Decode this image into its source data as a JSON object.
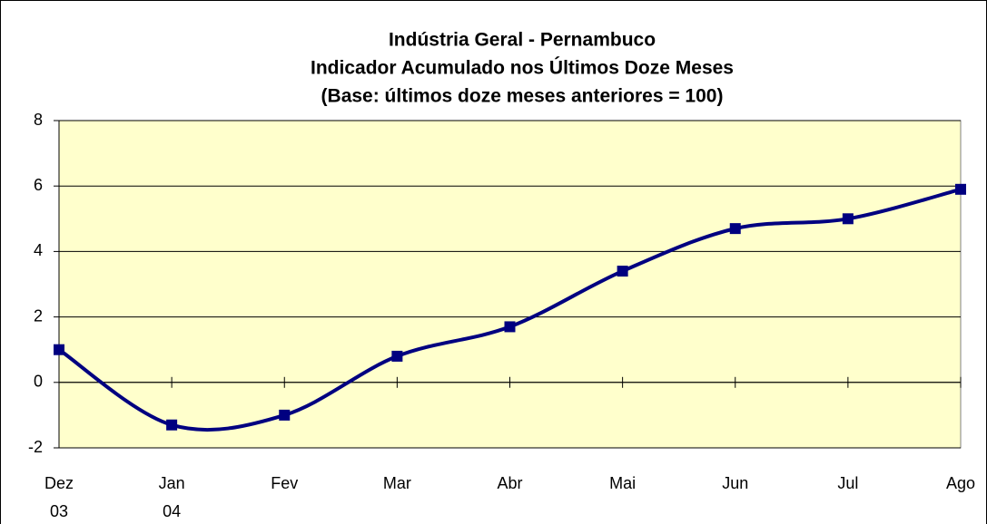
{
  "chart_data": {
    "type": "line",
    "title": [
      "Indústria Geral - Pernambuco",
      "Indicador Acumulado nos Últimos Doze Meses",
      "(Base: últimos doze meses anteriores = 100)"
    ],
    "categories": [
      "Dez 03",
      "Jan 04",
      "Fev",
      "Mar",
      "Abr",
      "Mai",
      "Jun",
      "Jul",
      "Ago"
    ],
    "series": [
      {
        "name": "Indústria Geral",
        "color": "#000080",
        "values": [
          1.0,
          -1.3,
          -1.0,
          0.8,
          1.7,
          3.4,
          4.7,
          5.0,
          5.9
        ]
      }
    ],
    "ylim": [
      -2,
      8
    ],
    "yticks": [
      -2,
      0,
      2,
      4,
      6,
      8
    ],
    "grid": true,
    "smooth": true,
    "plot_background": "#ffffcc"
  }
}
